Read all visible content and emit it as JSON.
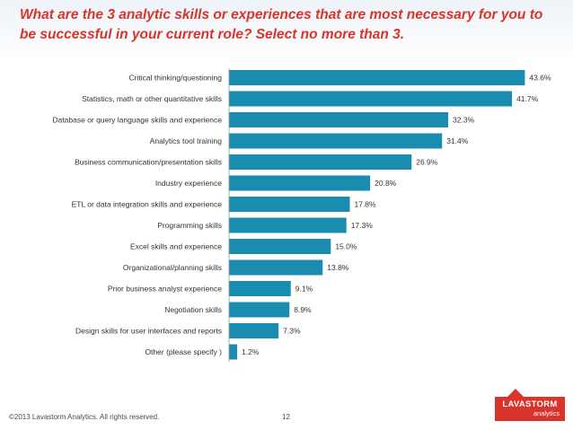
{
  "slide": {
    "title": "What are the 3 analytic skills or experiences that are most necessary for you to be successful in your current role? Select no more than 3.",
    "footer": "©2013 Lavastorm Analytics.  All rights reserved.",
    "page_number": "12",
    "logo_main": "LAVASTORM",
    "logo_sub": "analytics"
  },
  "colors": {
    "bar": "#1a8caf",
    "title": "#d9342b",
    "logo": "#d9342b"
  },
  "chart_data": {
    "type": "bar",
    "orientation": "horizontal",
    "categories": [
      "Critical thinking/questioning",
      "Statistics, math or other quantitative skills",
      "Database or query language skills and experience",
      "Analytics tool training",
      "Business communication/presentation skills",
      "Industry experience",
      "ETL or data integration skills and experience",
      "Programming skills",
      "Excel skills and experience",
      "Organizational/planning skills",
      "Prior business analyst experience",
      "Negotiation skills",
      "Design skills for user interfaces and reports",
      "Other (please specify )"
    ],
    "values": [
      43.6,
      41.7,
      32.3,
      31.4,
      26.9,
      20.8,
      17.8,
      17.3,
      15.0,
      13.8,
      9.1,
      8.9,
      7.3,
      1.2
    ],
    "value_labels": [
      "43.6%",
      "41.7%",
      "32.3%",
      "31.4%",
      "26.9%",
      "20.8%",
      "17.8%",
      "17.3%",
      "15.0%",
      "13.8%",
      "9.1%",
      "8.9%",
      "7.3%",
      "1.2%"
    ],
    "xlim": [
      0,
      45
    ],
    "grid": false
  }
}
